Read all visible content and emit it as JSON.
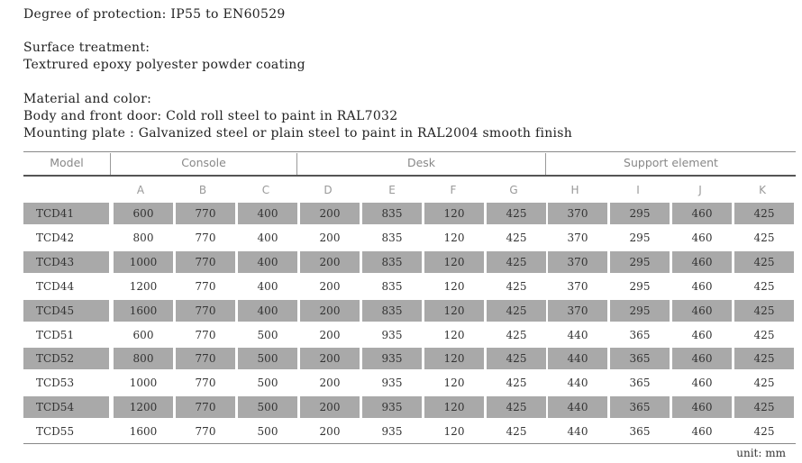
{
  "specs": {
    "protection": "Degree of protection: IP55  to EN60529",
    "surface_heading": "Surface treatment:",
    "surface_value": "Textrured epoxy polyester powder coating",
    "material_heading": "Material and color:",
    "material_line1": "Body and front door: Cold roll steel to paint in RAL7032",
    "material_line2": "Mounting plate : Galvanized steel or plain steel to paint in RAL2004 smooth finish"
  },
  "table": {
    "group_headers": [
      "Model",
      "Console",
      "Desk",
      "Support element"
    ],
    "columns": [
      "A",
      "B",
      "C",
      "D",
      "E",
      "F",
      "G",
      "H",
      "I",
      "J",
      "K"
    ],
    "rows": [
      {
        "model": "TCD41",
        "values": [
          "600",
          "770",
          "400",
          "200",
          "835",
          "120",
          "425",
          "370",
          "295",
          "460",
          "425"
        ],
        "shaded": true
      },
      {
        "model": "TCD42",
        "values": [
          "800",
          "770",
          "400",
          "200",
          "835",
          "120",
          "425",
          "370",
          "295",
          "460",
          "425"
        ],
        "shaded": false
      },
      {
        "model": "TCD43",
        "values": [
          "1000",
          "770",
          "400",
          "200",
          "835",
          "120",
          "425",
          "370",
          "295",
          "460",
          "425"
        ],
        "shaded": true
      },
      {
        "model": "TCD44",
        "values": [
          "1200",
          "770",
          "400",
          "200",
          "835",
          "120",
          "425",
          "370",
          "295",
          "460",
          "425"
        ],
        "shaded": false
      },
      {
        "model": "TCD45",
        "values": [
          "1600",
          "770",
          "400",
          "200",
          "835",
          "120",
          "425",
          "370",
          "295",
          "460",
          "425"
        ],
        "shaded": true
      },
      {
        "model": "TCD51",
        "values": [
          "600",
          "770",
          "500",
          "200",
          "935",
          "120",
          "425",
          "440",
          "365",
          "460",
          "425"
        ],
        "shaded": false
      },
      {
        "model": "TCD52",
        "values": [
          "800",
          "770",
          "500",
          "200",
          "935",
          "120",
          "425",
          "440",
          "365",
          "460",
          "425"
        ],
        "shaded": true
      },
      {
        "model": "TCD53",
        "values": [
          "1000",
          "770",
          "500",
          "200",
          "935",
          "120",
          "425",
          "440",
          "365",
          "460",
          "425"
        ],
        "shaded": false
      },
      {
        "model": "TCD54",
        "values": [
          "1200",
          "770",
          "500",
          "200",
          "935",
          "120",
          "425",
          "440",
          "365",
          "460",
          "425"
        ],
        "shaded": true
      },
      {
        "model": "TCD55",
        "values": [
          "1600",
          "770",
          "500",
          "200",
          "935",
          "120",
          "425",
          "440",
          "365",
          "460",
          "425"
        ],
        "shaded": false
      }
    ],
    "unit": "unit: mm"
  },
  "colors": {
    "row_shade": "#a9a9a9",
    "rule": "#888888",
    "header_text": "#888888"
  }
}
